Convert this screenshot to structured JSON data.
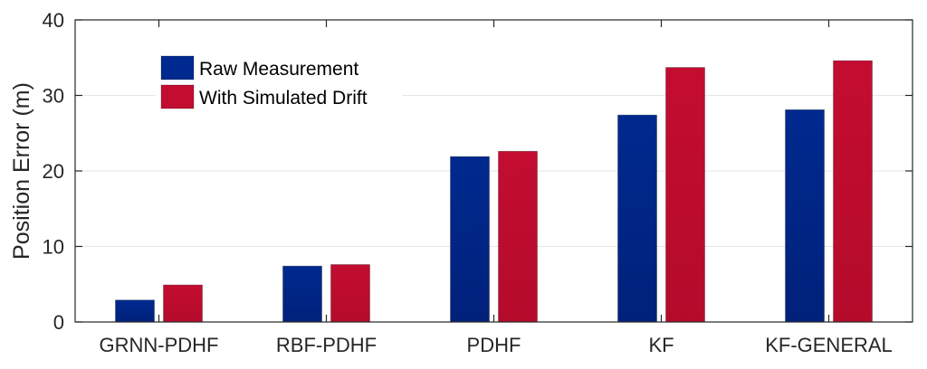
{
  "chart_data": {
    "type": "bar",
    "categories": [
      "GRNN-PDHF",
      "RBF-PDHF",
      "PDHF",
      "KF",
      "KF-GENERAL"
    ],
    "series": [
      {
        "name": "Raw Measurement",
        "values": [
          2.9,
          7.4,
          21.9,
          27.4,
          28.1
        ],
        "color": "#00298f"
      },
      {
        "name": "With Simulated Drift",
        "values": [
          4.9,
          7.6,
          22.6,
          33.7,
          34.6
        ],
        "color": "#c30d30"
      }
    ],
    "ylabel": "Position Error (m)",
    "ylim": [
      0,
      40
    ],
    "yticks": [
      "0",
      "10",
      "20",
      "30",
      "40"
    ],
    "grid": true,
    "legend_position": "top-left"
  }
}
